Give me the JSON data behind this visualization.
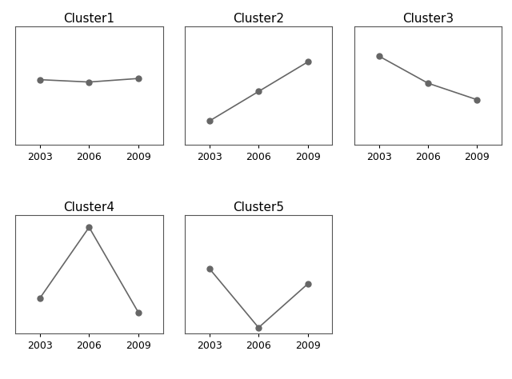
{
  "years": [
    2003,
    2006,
    2009
  ],
  "clusters": {
    "Cluster1": {
      "values": [
        0.55,
        0.53,
        0.56
      ],
      "ylim": [
        0.0,
        1.0
      ]
    },
    "Cluster2": {
      "values": [
        0.2,
        0.45,
        0.7
      ],
      "ylim": [
        0.0,
        1.0
      ]
    },
    "Cluster3": {
      "values": [
        0.75,
        0.52,
        0.38
      ],
      "ylim": [
        0.0,
        1.0
      ]
    },
    "Cluster4": {
      "values": [
        0.3,
        0.9,
        0.18
      ],
      "ylim": [
        0.0,
        1.0
      ]
    },
    "Cluster5": {
      "values": [
        0.55,
        0.05,
        0.42
      ],
      "ylim": [
        0.0,
        1.0
      ]
    }
  },
  "years_xlim": [
    2001.5,
    2010.5
  ],
  "line_color": "#666666",
  "marker_color": "#666666",
  "marker_size": 5,
  "line_width": 1.2,
  "title_fontsize": 11,
  "tick_fontsize": 9,
  "background_color": "#ffffff",
  "spine_color": "#555555",
  "spine_linewidth": 0.8
}
